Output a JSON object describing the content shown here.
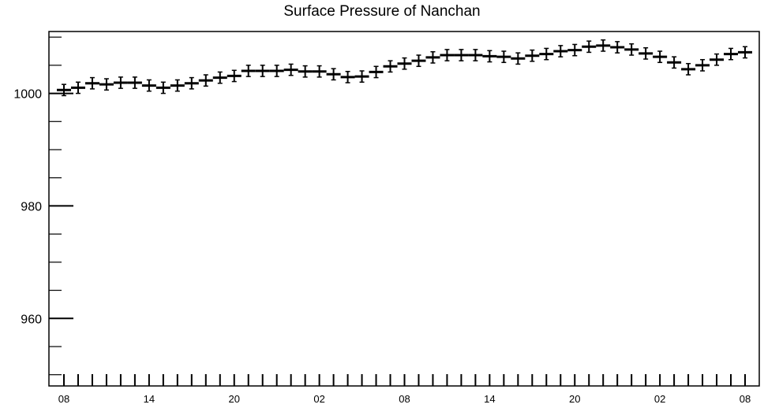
{
  "chart_data": {
    "type": "line",
    "title": "Surface Pressure of Nanchan",
    "xlabel": "",
    "ylabel": "",
    "x_tick_labels": [
      "08",
      "14",
      "20",
      "02",
      "08",
      "14",
      "20",
      "02",
      "08"
    ],
    "x_tick_label_steps": [
      0,
      6,
      12,
      18,
      24,
      30,
      36,
      42,
      48
    ],
    "ylim": [
      948,
      1011
    ],
    "y_ticks": [
      1000,
      980,
      960
    ],
    "y_tick_labels": [
      "1000",
      "980",
      "960"
    ],
    "grid": false,
    "marker": "horizontal bar with error bars",
    "series": [
      {
        "x": [
          0,
          1,
          2,
          3,
          4,
          5,
          6,
          7,
          8,
          9,
          10,
          11,
          12,
          13,
          14,
          15,
          16,
          17,
          18,
          19,
          20,
          21,
          22,
          23,
          24,
          25,
          26,
          27,
          28,
          29,
          30,
          31,
          32,
          33,
          34,
          35,
          36,
          37,
          38,
          39,
          40,
          41,
          42,
          43,
          44,
          45,
          46,
          47,
          48
        ],
        "values": [
          1000.6,
          1001.0,
          1001.8,
          1001.6,
          1001.9,
          1001.9,
          1001.4,
          1001.0,
          1001.4,
          1001.8,
          1002.3,
          1002.8,
          1003.1,
          1004.0,
          1004.0,
          1004.0,
          1004.2,
          1003.9,
          1003.9,
          1003.4,
          1002.9,
          1003.0,
          1003.8,
          1004.8,
          1005.3,
          1005.8,
          1006.4,
          1006.8,
          1006.8,
          1006.8,
          1006.6,
          1006.5,
          1006.2,
          1006.7,
          1007.0,
          1007.5,
          1007.7,
          1008.3,
          1008.5,
          1008.2,
          1007.8,
          1007.1,
          1006.5,
          1005.5,
          1004.3,
          1005.0,
          1006.0,
          1007.0,
          1007.3
        ],
        "error": 1.0
      }
    ]
  }
}
